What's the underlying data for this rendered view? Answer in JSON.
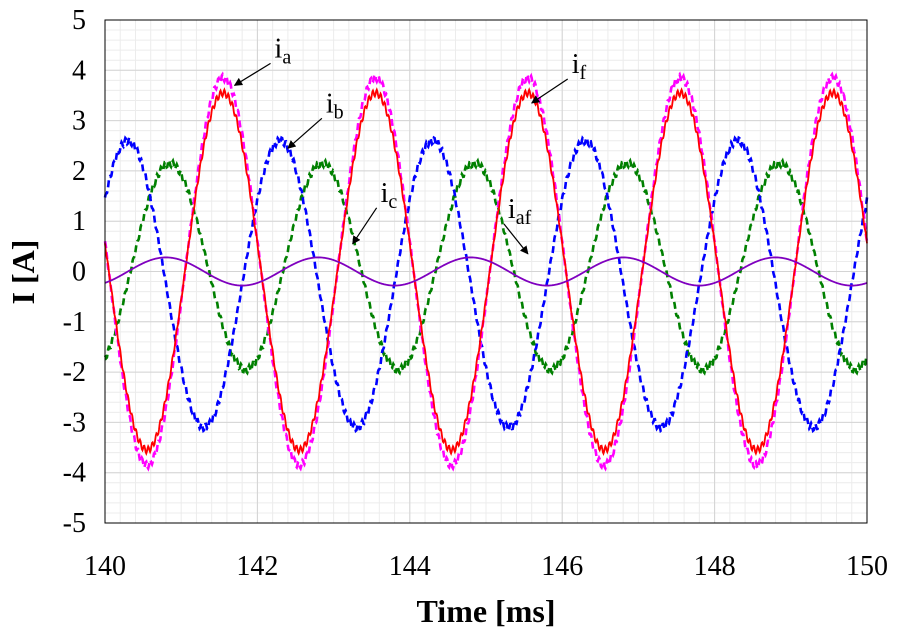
{
  "chart_data": {
    "type": "line",
    "title": "",
    "xlabel": "Time [ms]",
    "ylabel": "I [A]",
    "xlim": [
      140,
      150
    ],
    "ylim": [
      -5,
      5
    ],
    "x_ticks": [
      "140",
      "142",
      "144",
      "146",
      "148",
      "150"
    ],
    "y_ticks": [
      "5",
      "4",
      "3",
      "2",
      "1",
      "0",
      "-1",
      "-2",
      "-3",
      "-4",
      "-5"
    ],
    "grid": true,
    "legend": "none",
    "series": [
      {
        "name": "i",
        "subscript": "a",
        "color": "#ff00ff",
        "dash": "dashed",
        "amplitude": 3.85,
        "period_ms": 2.0,
        "first_peak_ms": 141.55,
        "offset": 0
      },
      {
        "name": "i",
        "subscript": "b",
        "color": "#0000ff",
        "dash": "dashed",
        "amplitude": 2.85,
        "period_ms": 2.0,
        "first_peak_ms": 140.3,
        "offset": -0.25
      },
      {
        "name": "i",
        "subscript": "c",
        "color": "#008000",
        "dash": "dashed",
        "amplitude": 2.05,
        "period_ms": 2.0,
        "first_peak_ms": 140.85,
        "offset": 0.1
      },
      {
        "name": "i",
        "subscript": "f",
        "color": "#ff0000",
        "dash": "solid",
        "amplitude": 3.55,
        "period_ms": 2.0,
        "first_peak_ms": 141.55,
        "offset": 0
      },
      {
        "name": "i",
        "subscript": "af",
        "color": "#7f00bf",
        "dash": "solid",
        "amplitude": 0.28,
        "period_ms": 2.0,
        "first_peak_ms": 140.8,
        "offset": 0
      }
    ],
    "annotations": [
      {
        "main": "i",
        "sub": "a",
        "target_x": 141.7,
        "target_y": 3.7
      },
      {
        "main": "i",
        "sub": "b",
        "target_x": 142.4,
        "target_y": 2.45
      },
      {
        "main": "i",
        "sub": "c",
        "target_x": 143.25,
        "target_y": 0.55
      },
      {
        "main": "i",
        "sub": "f",
        "target_x": 145.6,
        "target_y": 3.35
      },
      {
        "main": "i",
        "sub": "af",
        "target_x": 145.55,
        "target_y": 0.35
      }
    ]
  }
}
